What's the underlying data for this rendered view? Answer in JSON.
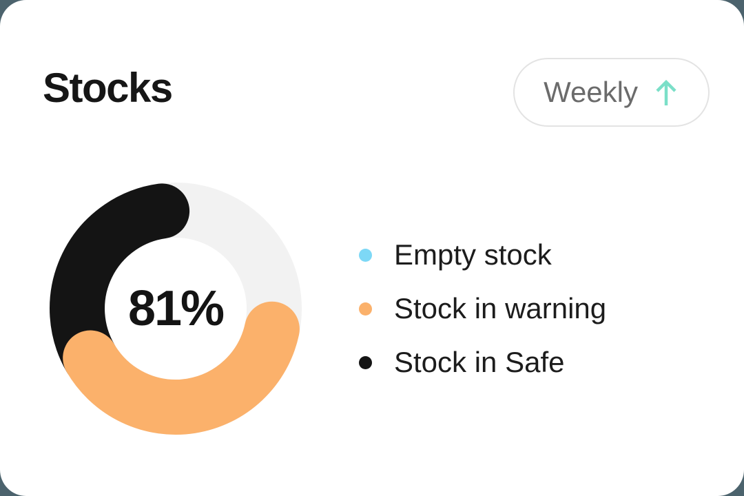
{
  "header": {
    "title": "Stocks",
    "period_selector": {
      "label": "Weekly",
      "arrow_icon": "up-arrow",
      "arrow_color": "#7BDFC8"
    }
  },
  "chart_data": {
    "type": "donut",
    "title": "Stocks",
    "center_label": "81%",
    "geometry_note": "angles in degrees clockwise from 12 o'clock, rounded caps on segment ends",
    "segments": [
      {
        "name": "track",
        "color": "#F2F2F2",
        "start_angle": 0,
        "end_angle": 360
      },
      {
        "name": "stock in safe",
        "color": "#141414",
        "start_angle": 240,
        "end_angle": 352,
        "approx_percent": 31
      },
      {
        "name": "stock in warning",
        "color": "#FBB16B",
        "start_angle": 102,
        "end_angle": 240,
        "approx_percent": 38
      }
    ],
    "legend": [
      {
        "label": "Empty stock",
        "color": "#7DD8F6"
      },
      {
        "label": "Stock in warning",
        "color": "#FBB16B"
      },
      {
        "label": "Stock in Safe",
        "color": "#141414"
      }
    ],
    "legend_position": "right"
  },
  "colors": {
    "page_background": "#4C636D",
    "card_background": "#FFFFFF",
    "title_text": "#161616",
    "legend_text": "#1C1C1C",
    "pill_border": "#E3E3E3",
    "pill_text": "#6B6B6B",
    "mint_accent": "#7BDFC8"
  }
}
